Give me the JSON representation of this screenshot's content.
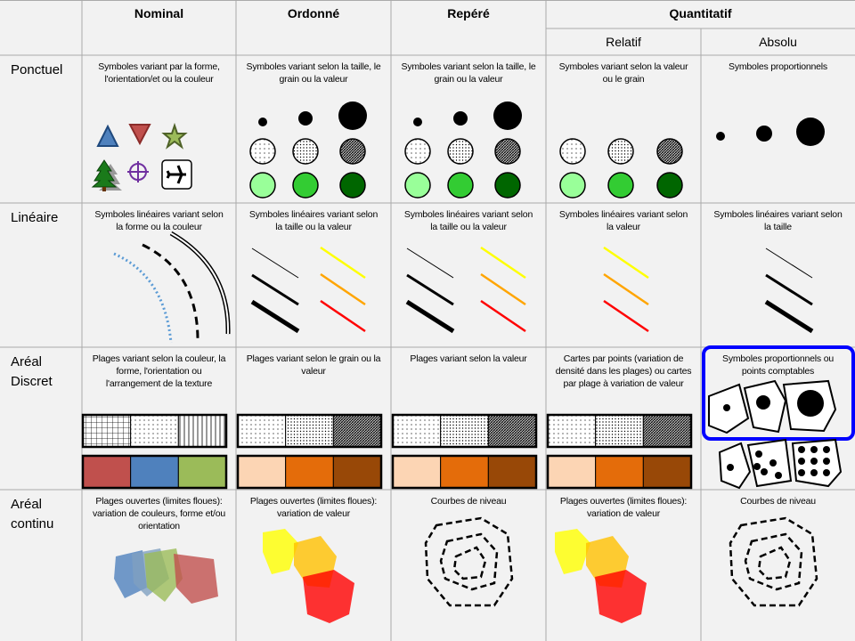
{
  "header": {
    "columns": [
      "Nominal",
      "Ordonné",
      "Repéré",
      "Quantitatif"
    ],
    "subcolumns": [
      "Relatif",
      "Absolu"
    ]
  },
  "rows": [
    {
      "label": "Ponctuel",
      "cells": [
        "Symboles variant par la forme, l'orientation/et ou la couleur",
        "Symboles variant selon la taille, le grain ou la valeur",
        "Symboles variant selon la taille, le grain ou la valeur",
        "Symboles variant selon la valeur ou le grain",
        "Symboles proportionnels"
      ]
    },
    {
      "label": "Linéaire",
      "cells": [
        "Symboles linéaires variant selon la forme ou la couleur",
        "Symboles linéaires variant selon la taille ou la valeur",
        "Symboles linéaires variant selon la taille ou la valeur",
        "Symboles linéaires variant selon la valeur",
        "Symboles linéaires variant selon la taille"
      ]
    },
    {
      "label": "Aréal Discret",
      "cells": [
        "Plages variant selon la couleur, la forme, l'orientation ou l'arrangement de la texture",
        "Plages variant selon le grain ou la valeur",
        "Plages variant selon la valeur",
        "Cartes par points (variation de densité dans les plages) ou cartes par plage à variation de valeur",
        "Symboles proportionnels ou points comptables"
      ]
    },
    {
      "label": "Aréal continu",
      "cells": [
        "Plages ouvertes (limites floues): variation de couleurs, forme et/ou orientation",
        "Plages ouvertes (limites floues): variation de valeur",
        "Courbes de niveau",
        "Plages ouvertes (limites floues): variation de valeur",
        "Courbes de niveau"
      ]
    }
  ]
}
